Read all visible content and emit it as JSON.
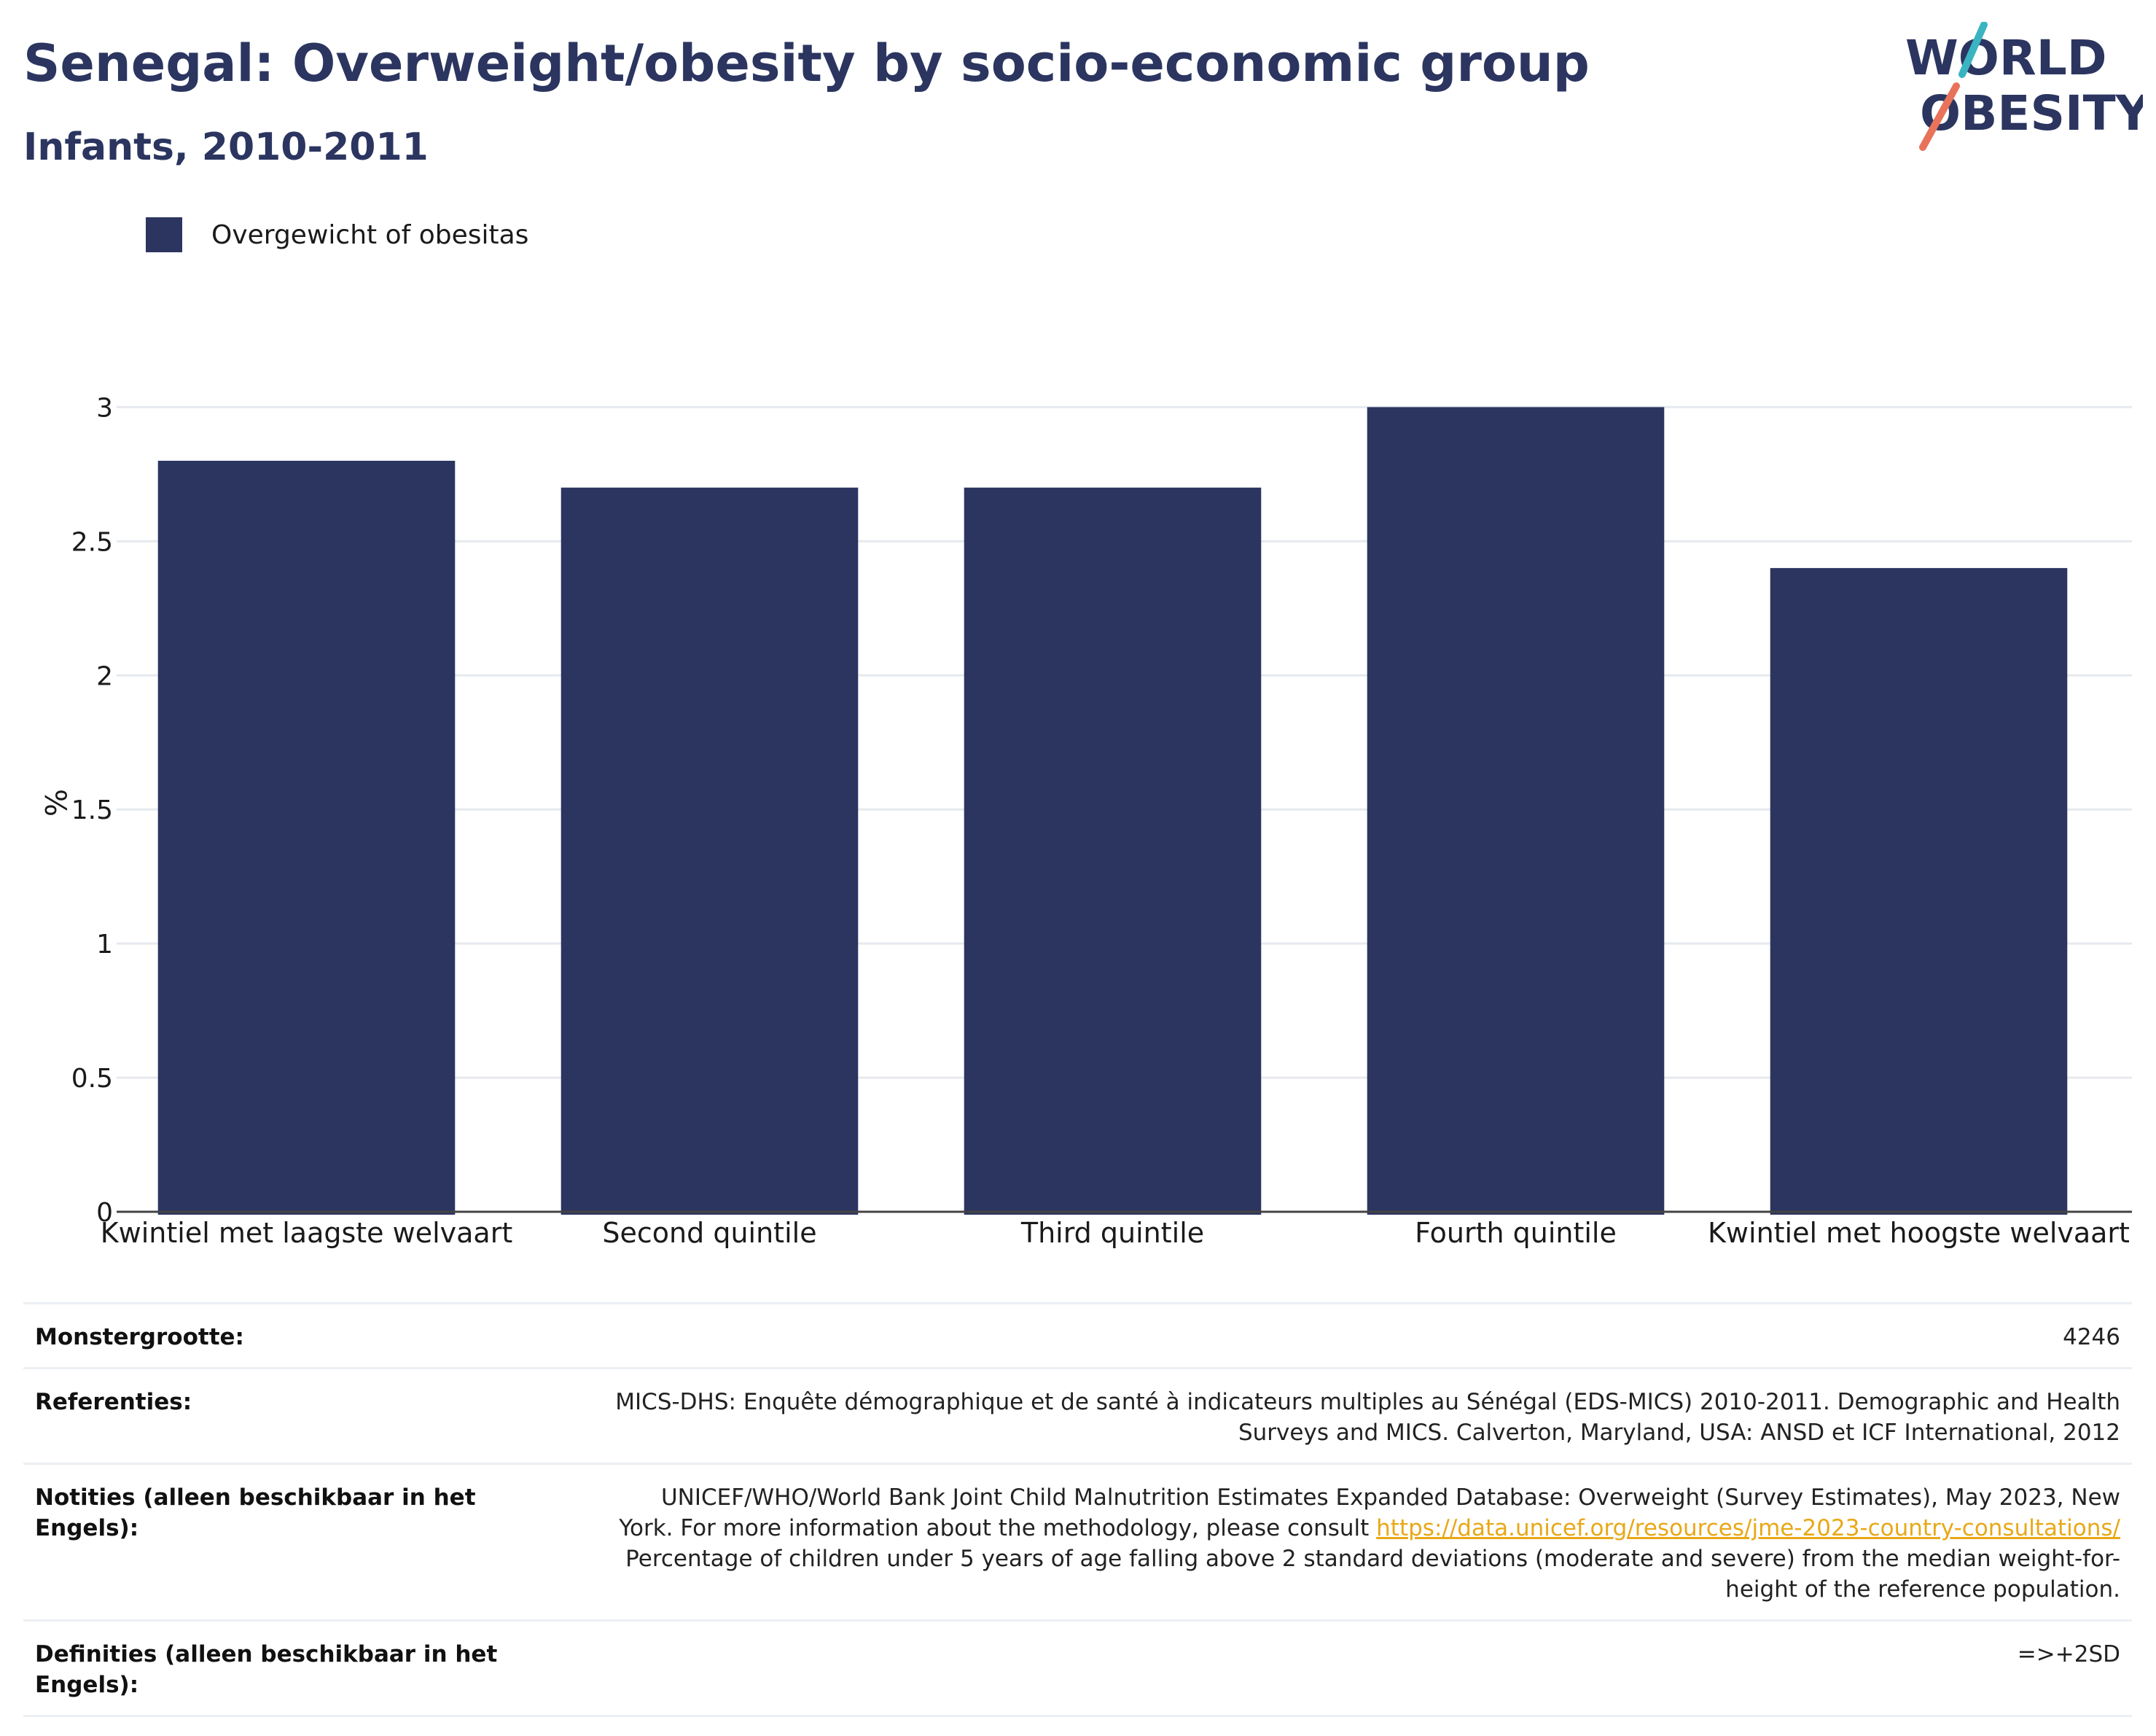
{
  "header": {
    "title": "Senegal: Overweight/obesity by socio-economic group",
    "subtitle": "Infants, 2010-2011"
  },
  "logo": {
    "line1": "WORLD",
    "line2": "OBESITY",
    "colors": {
      "navy": "#2b3560",
      "teal": "#3bb4c1",
      "coral": "#e8735a"
    }
  },
  "legend": {
    "label": "Overgewicht of obesitas",
    "color": "#2b3560"
  },
  "chart_data": {
    "type": "bar",
    "categories": [
      "Kwintiel met laagste welvaart",
      "Second quintile",
      "Third quintile",
      "Fourth quintile",
      "Kwintiel met hoogste welvaart"
    ],
    "series": [
      {
        "name": "Overgewicht of obesitas",
        "values": [
          2.8,
          2.7,
          2.7,
          3.0,
          2.4
        ],
        "color": "#2b3560"
      }
    ],
    "ylabel": "%",
    "ylim": [
      0,
      3.05
    ],
    "yticks": [
      0,
      0.5,
      1,
      1.5,
      2,
      2.5,
      3
    ],
    "yticklabels": [
      "0",
      "0.5",
      "1",
      "1.5",
      "2",
      "2.5",
      "3"
    ],
    "grid": true,
    "legend_position": "top-left"
  },
  "info": {
    "sample_size": {
      "label": "Monstergrootte:",
      "value": "4246"
    },
    "references": {
      "label": "Referenties:",
      "line1": "MICS-DHS: Enquête démographique et de santé à indicateurs multiples au Sénégal (EDS-MICS) 2010-2011. Demographic and Health",
      "line2": "Surveys and MICS. Calverton, Maryland, USA: ANSD et ICF International, 2012"
    },
    "notes": {
      "label": "Notities (alleen beschikbaar in het Engels):",
      "line1": "UNICEF/WHO/World Bank Joint Child Malnutrition Estimates Expanded Database: Overweight (Survey Estimates), May 2023, New",
      "line2_prefix": "York. For more information about the methodology, please consult ",
      "link": "https://data.unicef.org/resources/jme-2023-country-consultations/",
      "line3": "Percentage of children under 5 years of age falling above 2 standard deviations (moderate and severe) from the median weight-for-",
      "line4": "height of the reference population."
    },
    "definitions": {
      "label": "Definities (alleen beschikbaar in het Engels):",
      "value": "=>+2SD"
    }
  }
}
